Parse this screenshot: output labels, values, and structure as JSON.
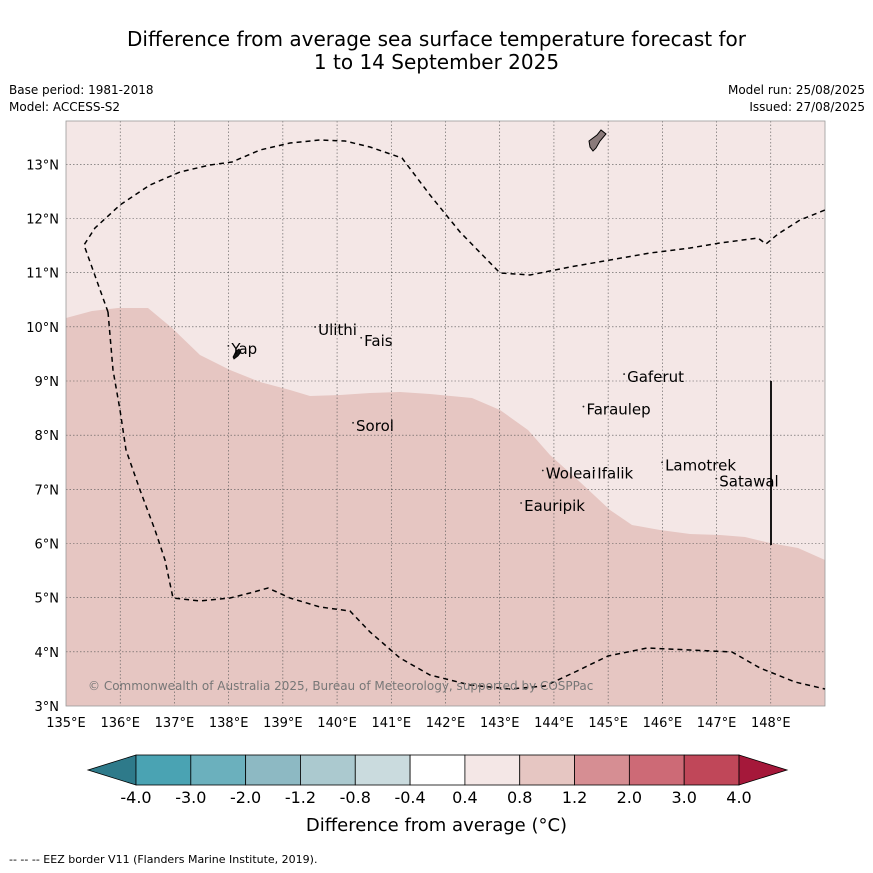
{
  "title": {
    "line1": "Difference from average sea surface temperature forecast for",
    "line2": "1 to 14 September 2025"
  },
  "meta": {
    "base_period": "Base period: 1981-2018",
    "model": "Model: ACCESS-S2",
    "model_run": "Model run: 25/08/2025",
    "issued": "Issued: 27/08/2025"
  },
  "map": {
    "lon_range": [
      135,
      149
    ],
    "lat_range": [
      3,
      13.8
    ],
    "lon_ticks": [
      "135°E",
      "136°E",
      "137°E",
      "138°E",
      "139°E",
      "140°E",
      "141°E",
      "142°E",
      "143°E",
      "144°E",
      "145°E",
      "146°E",
      "147°E",
      "148°E"
    ],
    "lat_ticks": [
      "3°N",
      "4°N",
      "5°N",
      "6°N",
      "7°N",
      "8°N",
      "9°N",
      "10°N",
      "11°N",
      "12°N",
      "13°N"
    ],
    "colors": {
      "band_0_4_0_8": "#f4e7e6",
      "band_0_8_1_2": "#e6c6c2"
    },
    "places": [
      {
        "name": "Yap",
        "lon": 138.05,
        "lat": 9.5
      },
      {
        "name": "Ulithi",
        "lon": 139.65,
        "lat": 9.85
      },
      {
        "name": "Fais",
        "lon": 140.5,
        "lat": 9.65
      },
      {
        "name": "Gaferut",
        "lon": 145.35,
        "lat": 8.98
      },
      {
        "name": "Faraulep",
        "lon": 144.6,
        "lat": 8.38
      },
      {
        "name": "Sorol",
        "lon": 140.35,
        "lat": 8.08
      },
      {
        "name": "Lamotrek",
        "lon": 146.05,
        "lat": 7.35
      },
      {
        "name": "Woleai",
        "lon": 143.85,
        "lat": 7.2
      },
      {
        "name": "Ifalik",
        "lon": 144.8,
        "lat": 7.2
      },
      {
        "name": "Satawal",
        "lon": 147.05,
        "lat": 7.05
      },
      {
        "name": "Eauripik",
        "lon": 143.45,
        "lat": 6.6
      }
    ],
    "copyright": "© Commonwealth of Australia 2025, Bureau of Meteorology, supported by COSPPac"
  },
  "colorbar": {
    "colors": [
      "#2e7a8a",
      "#4aa3b3",
      "#6bb0bd",
      "#8db9c3",
      "#abc9cf",
      "#cadbde",
      "#ffffff",
      "#f4e7e6",
      "#e6c6c2",
      "#d68e93",
      "#cd6a76",
      "#c04759",
      "#a5183a"
    ],
    "tick_labels": [
      "-4.0",
      "-3.0",
      "-2.0",
      "-1.2",
      "-0.8",
      "-0.4",
      "0.4",
      "0.8",
      "1.2",
      "2.0",
      "3.0",
      "4.0"
    ],
    "label": "Difference from average (°C)"
  },
  "footnote": "--  --  -- EEZ border V11 (Flanders Marine Institute, 2019)."
}
